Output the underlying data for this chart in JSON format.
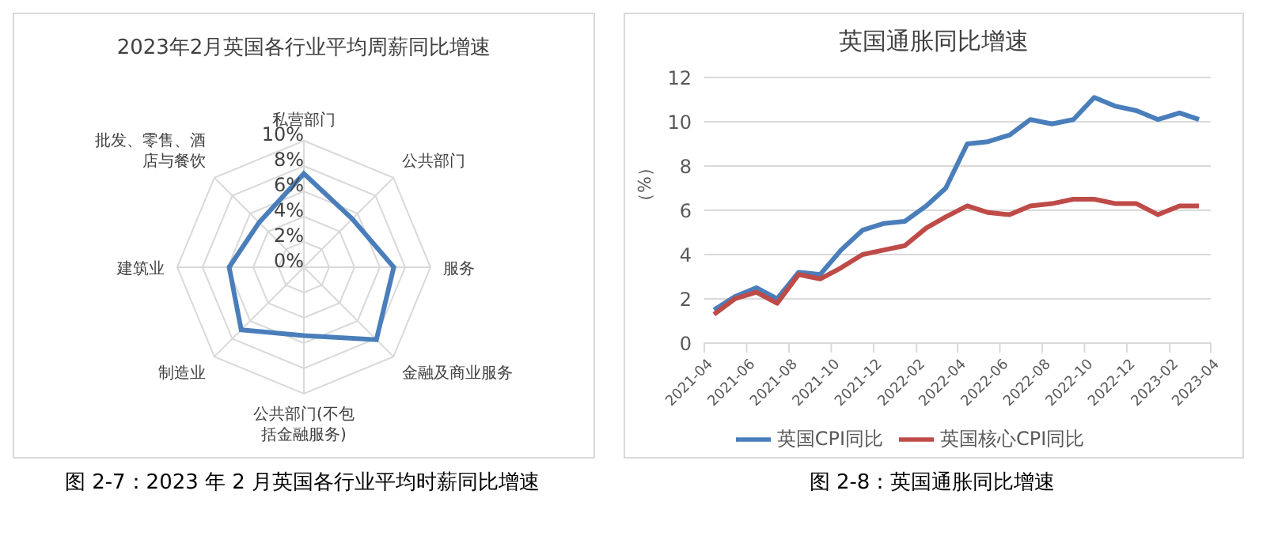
{
  "chart_data": [
    {
      "type": "radar",
      "title": "2023年2月英国各行业平均周薪同比增速",
      "categories": [
        "私营部门",
        "公共部门",
        "服务",
        "金融及商业服务",
        "公共部门(不包括金融服务)",
        "制造业",
        "建筑业",
        "批发、零售、酒店与餐饮"
      ],
      "series": [
        {
          "color": "#4a7ebb",
          "values": [
            7.4,
            5.4,
            7.1,
            8.1,
            5.4,
            7.0,
            5.9,
            5.0
          ]
        }
      ],
      "ylim": [
        0,
        10
      ],
      "yticks": [
        {
          "value": 0,
          "label": "0%"
        },
        {
          "value": 2,
          "label": "2%"
        },
        {
          "value": 4,
          "label": "4%"
        },
        {
          "value": 6,
          "label": "6%"
        },
        {
          "value": 8,
          "label": "8%"
        },
        {
          "value": 10,
          "label": "10%"
        }
      ],
      "grid": true,
      "legend": false,
      "annotations": [
        "图 2-7：2023 年 2 月英国各行业平均时薪同比增速"
      ]
    },
    {
      "type": "line",
      "title": "英国通胀同比增速",
      "ylabel": "（%）",
      "x": [
        "2021-04-15",
        "2021-05-15",
        "2021-06-15",
        "2021-07-15",
        "2021-08-15",
        "2021-09-15",
        "2021-10-15",
        "2021-11-15",
        "2021-12-15",
        "2022-01-15",
        "2022-02-15",
        "2022-03-15",
        "2022-04-15",
        "2022-05-15",
        "2022-06-15",
        "2022-07-15",
        "2022-08-15",
        "2022-09-15",
        "2022-10-15",
        "2022-11-15",
        "2022-12-15",
        "2023-01-15",
        "2023-02-15",
        "2023-03-15"
      ],
      "series": [
        {
          "name": "英国CPI同比",
          "color": "#4a7ebb",
          "values": [
            1.5,
            2.1,
            2.5,
            2.0,
            3.2,
            3.1,
            4.2,
            5.1,
            5.4,
            5.5,
            6.2,
            7.0,
            9.0,
            9.1,
            9.4,
            10.1,
            9.9,
            10.1,
            11.1,
            10.7,
            10.5,
            10.1,
            10.4,
            10.1
          ]
        },
        {
          "name": "英国核心CPI同比",
          "color": "#be4b48",
          "values": [
            1.3,
            2.0,
            2.3,
            1.8,
            3.1,
            2.9,
            3.4,
            4.0,
            4.2,
            4.4,
            5.2,
            5.7,
            6.2,
            5.9,
            5.8,
            6.2,
            6.3,
            6.5,
            6.5,
            6.3,
            6.3,
            5.8,
            6.2,
            6.2
          ]
        }
      ],
      "xlim": [
        "2021-04-01",
        "2023-04-01"
      ],
      "xticks": [
        {
          "value": "2021-04-01",
          "label": "2021-04"
        },
        {
          "value": "2021-06-01",
          "label": "2021-06"
        },
        {
          "value": "2021-08-01",
          "label": "2021-08"
        },
        {
          "value": "2021-10-01",
          "label": "2021-10"
        },
        {
          "value": "2021-12-01",
          "label": "2021-12"
        },
        {
          "value": "2022-02-01",
          "label": "2022-02"
        },
        {
          "value": "2022-04-01",
          "label": "2022-04"
        },
        {
          "value": "2022-06-01",
          "label": "2022-06"
        },
        {
          "value": "2022-08-01",
          "label": "2022-08"
        },
        {
          "value": "2022-10-01",
          "label": "2022-10"
        },
        {
          "value": "2022-12-01",
          "label": "2022-12"
        },
        {
          "value": "2023-02-01",
          "label": "2023-02"
        },
        {
          "value": "2023-04-01",
          "label": "2023-04"
        }
      ],
      "ylim": [
        0,
        12
      ],
      "yticks": [
        0,
        2,
        4,
        6,
        8,
        10,
        12
      ],
      "grid": "y",
      "legend": "bottom",
      "marker": "none",
      "line_style": "solid",
      "annotations": [
        "图 2-8：英国通胀同比增速"
      ]
    }
  ]
}
